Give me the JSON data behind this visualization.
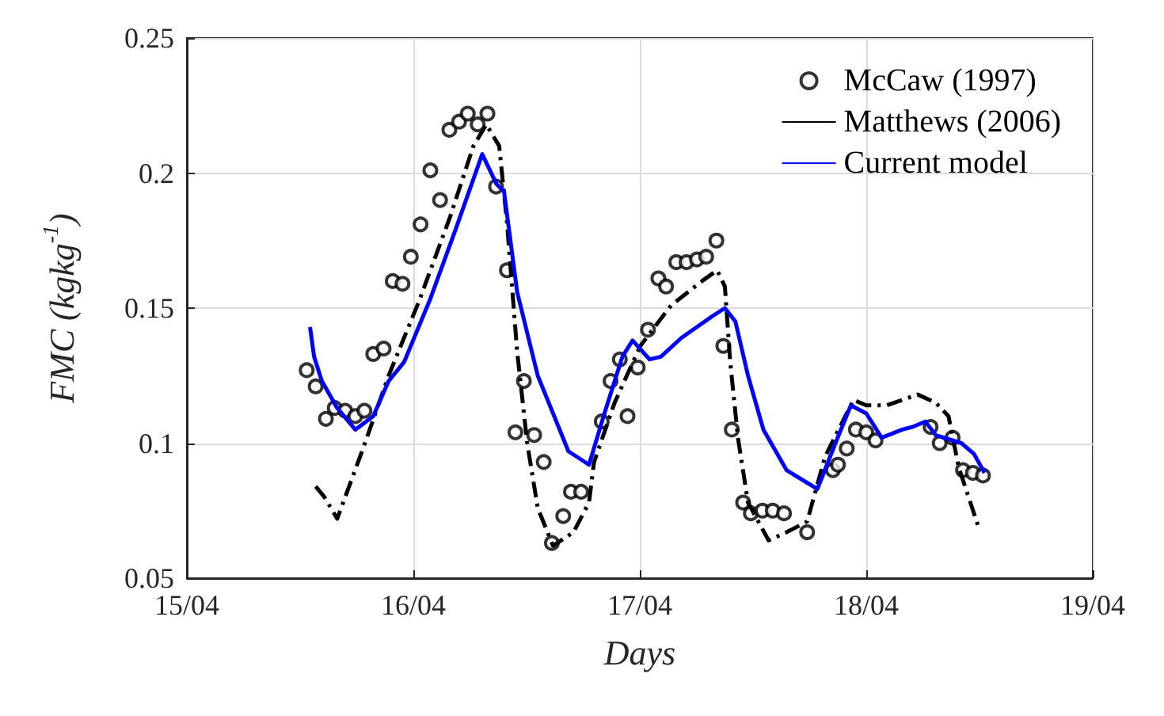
{
  "chart_data": {
    "type": "line",
    "xlabel": "Days",
    "ylabel": "FMC (kgkg$^{-1}$)",
    "xlim": [
      "--04-15",
      "--04-19"
    ],
    "xticks": [
      {
        "value": "--04-15",
        "label": "15/04"
      },
      {
        "value": "--04-16",
        "label": "16/04"
      },
      {
        "value": "--04-17",
        "label": "17/04"
      },
      {
        "value": "--04-18",
        "label": "18/04"
      },
      {
        "value": "--04-19",
        "label": "19/04"
      }
    ],
    "ylim": [
      0.05,
      0.25
    ],
    "yticks": [
      0.05,
      0.1,
      0.15,
      0.2,
      0.25
    ],
    "grid": true,
    "legend": "top right",
    "series": [
      {
        "name": "McCaw (1997)",
        "type": "scatter",
        "marker": "circle",
        "color": "#000000",
        "x": [
          "--04-15T12:42",
          "--04-15T13:39",
          "--04-15T14:44",
          "--04-15T15:40",
          "--04-15T16:47",
          "--04-15T17:51",
          "--04-15T18:49",
          "--04-15T19:45",
          "--04-15T20:51",
          "--04-15T21:49",
          "--04-15T22:51",
          "--04-15T23:44",
          "--04-16T00:46",
          "--04-16T01:48",
          "--04-16T02:50",
          "--04-16T03:49",
          "--04-16T04:51",
          "--04-16T05:46",
          "--04-16T06:49",
          "--04-16T07:51",
          "--04-16T08:46",
          "--04-16T09:55",
          "--04-16T10:49",
          "--04-16T11:43",
          "--04-16T12:48",
          "--04-16T13:49",
          "--04-16T14:41",
          "--04-16T15:53",
          "--04-16T16:42",
          "--04-16T17:47",
          "--04-16T19:58",
          "--04-16T20:54",
          "--04-16T21:53",
          "--04-16T22:42",
          "--04-16T23:47",
          "--04-17T00:52",
          "--04-17T01:58",
          "--04-17T02:47",
          "--04-17T03:52",
          "--04-17T04:57",
          "--04-17T06:03",
          "--04-17T07:02",
          "--04-17T08:07",
          "--04-17T08:51",
          "--04-17T09:45",
          "--04-17T10:57",
          "--04-17T11:46",
          "--04-17T13:00",
          "--04-17T14:05",
          "--04-17T15:17",
          "--04-17T17:44",
          "--04-17T20:28",
          "--04-17T21:00",
          "--04-17T21:56",
          "--04-17T22:54",
          "--04-18T00:00",
          "--04-18T00:59",
          "--04-18T06:49",
          "--04-18T07:47",
          "--04-18T09:09",
          "--04-18T10:15",
          "--04-18T11:18",
          "--04-18T12:22"
        ],
        "values": [
          0.127,
          0.121,
          0.109,
          0.113,
          0.112,
          0.11,
          0.112,
          0.133,
          0.135,
          0.16,
          0.159,
          0.169,
          0.181,
          0.201,
          0.19,
          0.216,
          0.219,
          0.222,
          0.218,
          0.222,
          0.195,
          0.164,
          0.104,
          0.123,
          0.103,
          0.093,
          0.063,
          0.073,
          0.082,
          0.082,
          0.108,
          0.123,
          0.131,
          0.11,
          0.128,
          0.142,
          0.161,
          0.158,
          0.167,
          0.167,
          0.168,
          0.169,
          0.175,
          0.136,
          0.105,
          0.078,
          0.074,
          0.075,
          0.075,
          0.074,
          0.067,
          0.09,
          0.092,
          0.098,
          0.105,
          0.104,
          0.101,
          0.106,
          0.1,
          0.102,
          0.09,
          0.089,
          0.088
        ]
      },
      {
        "name": "Matthews (2006)",
        "type": "line",
        "line_style": "dashed",
        "color": "#000000",
        "x": [
          "--04-15T13:39",
          "--04-15T14:35",
          "--04-15T15:56",
          "--04-15T18:40",
          "--04-15T21:23",
          "--04-16T00:39",
          "--04-16T03:55",
          "--04-16T06:22",
          "--04-16T07:44",
          "--04-16T09:06",
          "--04-16T09:55",
          "--04-16T11:00",
          "--04-16T12:04",
          "--04-16T13:11",
          "--04-16T14:48",
          "--04-16T16:58",
          "--04-16T18:37",
          "--04-16T19:09",
          "--04-16T21:20",
          "--04-17T00:03",
          "--04-17T03:19",
          "--04-17T06:35",
          "--04-17T08:12",
          "--04-17T09:01",
          "--04-17T09:35",
          "--04-17T10:24",
          "--04-17T11:28",
          "--04-17T13:39",
          "--04-17T15:33",
          "--04-17T17:44",
          "--04-17T19:38",
          "--04-17T22:39",
          "--04-18T00:00",
          "--04-18T02:11",
          "--04-18T05:27",
          "--04-18T07:21",
          "--04-18T08:43",
          "--04-18T09:48",
          "--04-18T11:59"
        ],
        "values": [
          0.084,
          0.08,
          0.072,
          0.098,
          0.125,
          0.153,
          0.184,
          0.21,
          0.218,
          0.21,
          0.182,
          0.134,
          0.1,
          0.076,
          0.062,
          0.067,
          0.078,
          0.093,
          0.115,
          0.136,
          0.151,
          0.16,
          0.164,
          0.158,
          0.13,
          0.102,
          0.078,
          0.064,
          0.067,
          0.071,
          0.095,
          0.116,
          0.114,
          0.114,
          0.118,
          0.115,
          0.11,
          0.091,
          0.068
        ]
      },
      {
        "name": "Current model",
        "type": "line",
        "line_style": "solid",
        "color": "#0000ff",
        "x": [
          "--04-15T13:03",
          "--04-15T13:29",
          "--04-15T14:18",
          "--04-15T15:56",
          "--04-15T17:51",
          "--04-15T19:45",
          "--04-15T21:23",
          "--04-15T23:01",
          "--04-16T01:45",
          "--04-16T04:28",
          "--04-16T07:18",
          "--04-16T08:48",
          "--04-16T09:37",
          "--04-16T11:00",
          "--04-16T13:11",
          "--04-16T16:26",
          "--04-16T18:37",
          "--04-16T20:15",
          "--04-16T22:09",
          "--04-16T23:14",
          "--04-17T01:02",
          "--04-17T02:14",
          "--04-17T04:25",
          "--04-17T07:41",
          "--04-17T09:01",
          "--04-17T10:08",
          "--04-17T11:28",
          "--04-17T13:06",
          "--04-17T15:33",
          "--04-17T18:49",
          "--04-17T20:44",
          "--04-17T22:22",
          "--04-18T00:00",
          "--04-18T01:38",
          "--04-18T03:49",
          "--04-18T04:54",
          "--04-18T06:16",
          "--04-18T07:21",
          "--04-18T10:05",
          "--04-18T11:25",
          "--04-18T12:32"
        ],
        "values": [
          0.143,
          0.132,
          0.123,
          0.113,
          0.105,
          0.11,
          0.123,
          0.13,
          0.153,
          0.179,
          0.207,
          0.196,
          0.193,
          0.156,
          0.125,
          0.097,
          0.092,
          0.111,
          0.132,
          0.138,
          0.131,
          0.132,
          0.139,
          0.147,
          0.15,
          0.145,
          0.125,
          0.105,
          0.09,
          0.083,
          0.1,
          0.114,
          0.111,
          0.102,
          0.105,
          0.106,
          0.108,
          0.103,
          0.1,
          0.096,
          0.089
        ]
      }
    ]
  }
}
